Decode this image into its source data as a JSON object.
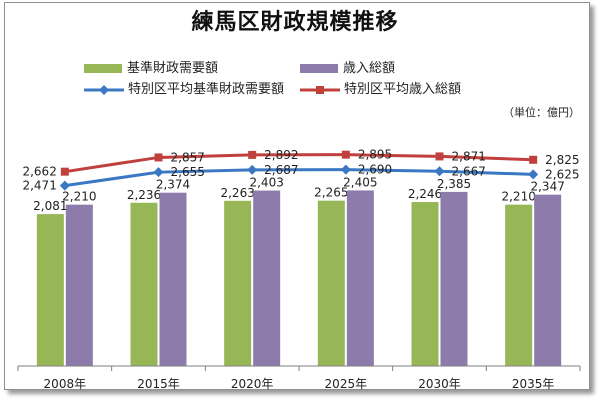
{
  "chart_data": {
    "type": "bar",
    "title": "練馬区財政規模推移",
    "unit_note": "（単位：億円）",
    "categories": [
      "2008年",
      "2015年",
      "2020年",
      "2025年",
      "2030年",
      "2035年"
    ],
    "ylim": [
      0,
      3000
    ],
    "grid": false,
    "legend_position": "top",
    "series": [
      {
        "name": "基準財政需要額",
        "kind": "bar",
        "color": "#97b655",
        "values": [
          2081,
          2236,
          2263,
          2265,
          2246,
          2210
        ],
        "labels": [
          "2,081",
          "2,236",
          "2,263",
          "2,265",
          "2,246",
          "2,210"
        ]
      },
      {
        "name": "歳入総額",
        "kind": "bar",
        "color": "#8d7bab",
        "values": [
          2210,
          2374,
          2403,
          2405,
          2385,
          2347
        ],
        "labels": [
          "2,210",
          "2,374",
          "2,403",
          "2,405",
          "2,385",
          "2,347"
        ]
      },
      {
        "name": "特別区平均基準財政需要額",
        "kind": "line",
        "color": "#3a78c3",
        "values": [
          2471,
          2655,
          2687,
          2690,
          2667,
          2625
        ],
        "labels": [
          "2,471",
          "2,655",
          "2,687",
          "2,690",
          "2,667",
          "2,625"
        ]
      },
      {
        "name": "特別区平均歳入総額",
        "kind": "line",
        "color": "#c0403d",
        "values": [
          2662,
          2857,
          2892,
          2895,
          2871,
          2825
        ],
        "labels": [
          "2,662",
          "2,857",
          "2,892",
          "2,895",
          "2,871",
          "2,825"
        ]
      }
    ]
  }
}
